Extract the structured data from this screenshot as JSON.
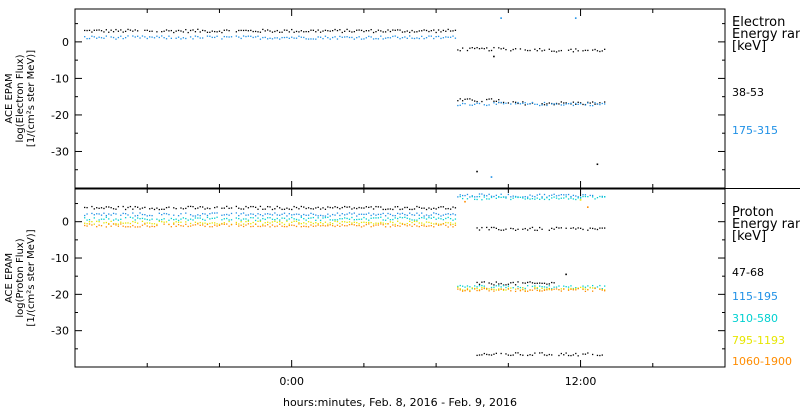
{
  "x_axis": {
    "ticks": [
      {
        "hours": 0,
        "label": "0:00"
      },
      {
        "hours": 12,
        "label": "12:00"
      }
    ],
    "label": "hours:minutes, Feb.  8, 2016 - Feb.  9, 2016"
  },
  "chart_data": [
    {
      "type": "scatter",
      "panel": "electron",
      "ylabel_lines": [
        "ACE EPAM",
        "log(Electron Flux)",
        "[1/(cm²s ster MeV)]"
      ],
      "ylim": [
        -40,
        9
      ],
      "xlim_hours": [
        -9,
        18
      ],
      "yticks": [
        0,
        -10,
        -20,
        -30
      ],
      "legend": {
        "title_lines": [
          "Electron",
          "Energy ranges",
          "[keV]"
        ],
        "placement": "right"
      },
      "series": [
        {
          "name": "38-53",
          "color": "#000000",
          "segments": [
            {
              "x_range": [
                -8.6,
                -2.5
              ],
              "y": 3.0
            },
            {
              "x_range": [
                -2.3,
                6.8
              ],
              "y": 3.0
            },
            {
              "x_range": [
                6.9,
                10.5
              ],
              "y": -2.0
            },
            {
              "x_range": [
                10.7,
                13.0
              ],
              "y": -2.3
            },
            {
              "x_range": [
                6.9,
                8.6
              ],
              "y": -16.0
            },
            {
              "x_range": [
                8.6,
                13.0
              ],
              "y": -16.8
            }
          ],
          "points": [
            {
              "x": 7.7,
              "y": -35.5
            },
            {
              "x": 12.7,
              "y": -33.5
            },
            {
              "x": 8.4,
              "y": -4.0
            }
          ]
        },
        {
          "name": "175-315",
          "color": "#1e90e6",
          "segments": [
            {
              "x_range": [
                -8.6,
                -2.5
              ],
              "y": 1.2
            },
            {
              "x_range": [
                -2.3,
                6.8
              ],
              "y": 1.2
            },
            {
              "x_range": [
                6.9,
                13.0
              ],
              "y": -17.0
            }
          ],
          "points": [
            {
              "x": 8.7,
              "y": 6.5
            },
            {
              "x": 11.8,
              "y": 6.5
            },
            {
              "x": 8.3,
              "y": -37.0
            }
          ]
        }
      ]
    },
    {
      "type": "scatter",
      "panel": "proton",
      "ylabel_lines": [
        "ACE EPAM",
        "log(Proton Flux)",
        "[1/(cm²s ster MeV)]"
      ],
      "ylim": [
        -40,
        9
      ],
      "xlim_hours": [
        -9,
        18
      ],
      "yticks": [
        0,
        -10,
        -20,
        -30
      ],
      "legend": {
        "title_lines": [
          "Proton",
          "Energy ranges",
          "[keV]"
        ],
        "placement": "right"
      },
      "series": [
        {
          "name": "47-68",
          "color": "#000000",
          "segments": [
            {
              "x_range": [
                -8.6,
                -2.5
              ],
              "y": 3.8
            },
            {
              "x_range": [
                -2.3,
                6.8
              ],
              "y": 3.8
            },
            {
              "x_range": [
                7.7,
                13.0
              ],
              "y": -2.0
            },
            {
              "x_range": [
                7.7,
                11.0
              ],
              "y": -17.0
            },
            {
              "x_range": [
                7.7,
                13.0
              ],
              "y": -36.5
            }
          ],
          "points": [
            {
              "x": 11.4,
              "y": -14.5
            }
          ]
        },
        {
          "name": "115-195",
          "color": "#1e90e6",
          "segments": [
            {
              "x_range": [
                -8.6,
                -2.5
              ],
              "y": 2.0
            },
            {
              "x_range": [
                -2.3,
                6.8
              ],
              "y": 2.0
            },
            {
              "x_range": [
                6.9,
                13.0
              ],
              "y": 7.2
            }
          ],
          "points": []
        },
        {
          "name": "310-580",
          "color": "#00d0d0",
          "segments": [
            {
              "x_range": [
                -8.6,
                -2.5
              ],
              "y": 0.8
            },
            {
              "x_range": [
                -2.3,
                6.8
              ],
              "y": 0.8
            },
            {
              "x_range": [
                6.9,
                13.0
              ],
              "y": 6.5
            },
            {
              "x_range": [
                6.9,
                13.0
              ],
              "y": -18.0
            }
          ],
          "points": []
        },
        {
          "name": "795-1193",
          "color": "#e6e600",
          "segments": [
            {
              "x_range": [
                -8.6,
                -2.5
              ],
              "y": -0.3
            },
            {
              "x_range": [
                -2.3,
                6.8
              ],
              "y": -0.3
            },
            {
              "x_range": [
                6.9,
                13.0
              ],
              "y": -18.5
            }
          ],
          "points": [
            {
              "x": 12.0,
              "y": 6.0
            }
          ]
        },
        {
          "name": "1060-1900",
          "color": "#ff8c00",
          "segments": [
            {
              "x_range": [
                -8.6,
                -2.5
              ],
              "y": -1.0
            },
            {
              "x_range": [
                -2.3,
                6.8
              ],
              "y": -1.0
            },
            {
              "x_range": [
                6.9,
                13.0
              ],
              "y": -18.8
            }
          ],
          "points": [
            {
              "x": 7.2,
              "y": 5.5
            },
            {
              "x": 12.3,
              "y": 4.0
            }
          ]
        }
      ]
    }
  ]
}
